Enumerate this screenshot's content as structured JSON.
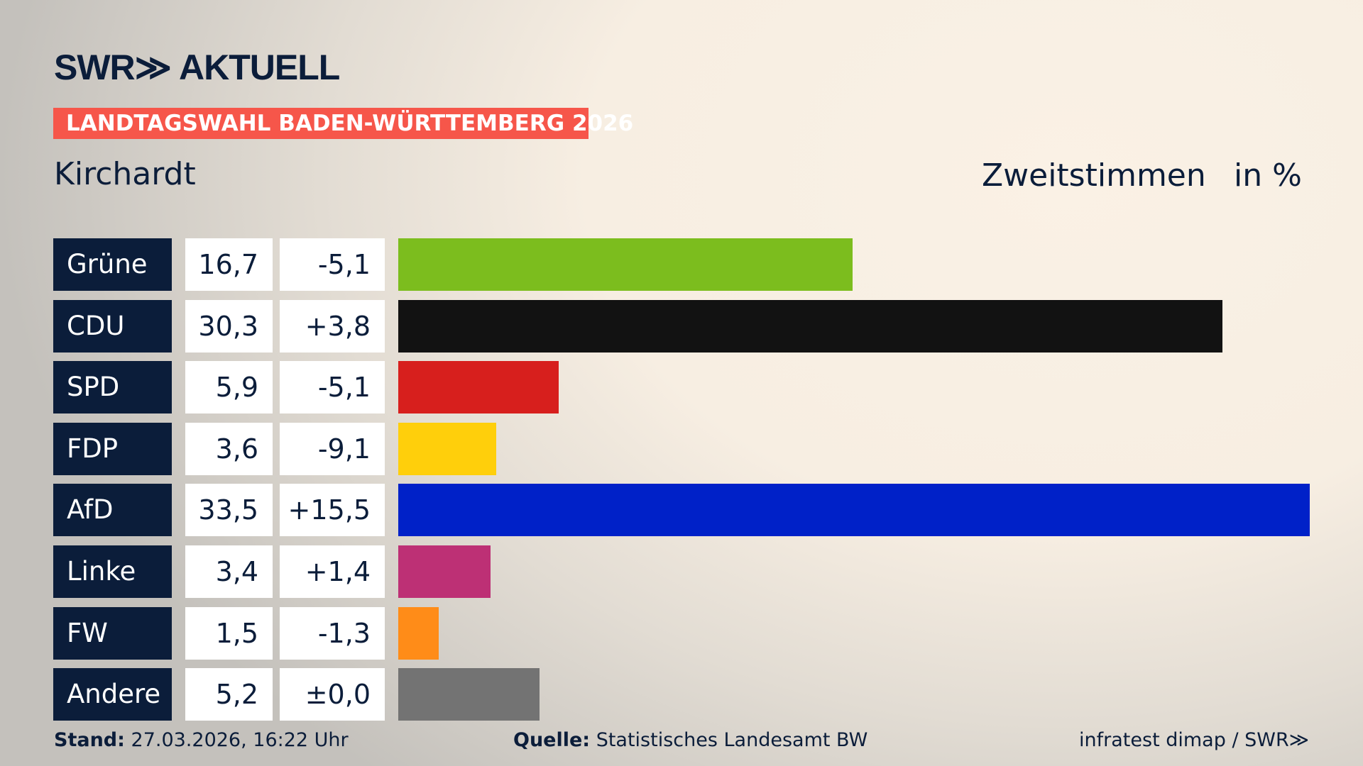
{
  "header": {
    "logo": "SWR≫ AKTUELL",
    "banner": "LANDTAGSWAHL BADEN-WÜRTTEMBERG 2026",
    "place": "Kirchardt",
    "measure": "Zweitstimmen",
    "unit": "in %"
  },
  "chart_data": {
    "type": "bar",
    "orientation": "horizontal",
    "categories": [
      "Grüne",
      "CDU",
      "SPD",
      "FDP",
      "AfD",
      "Linke",
      "FW",
      "Andere"
    ],
    "values": [
      16.7,
      30.3,
      5.9,
      3.6,
      33.5,
      3.4,
      1.5,
      5.2
    ],
    "value_labels": [
      "16,7",
      "30,3",
      "5,9",
      "3,6",
      "33,5",
      "3,4",
      "1,5",
      "5,2"
    ],
    "diff_labels": [
      "-5,1",
      "+3,8",
      "-5,1",
      "-9,1",
      "+15,5",
      "+1,4",
      "-1,3",
      "±0,0"
    ],
    "colors": [
      "#7cbd1e",
      "#121212",
      "#d71f1d",
      "#ffcf0b",
      "#0021c8",
      "#bd3075",
      "#ff8c18",
      "#737373"
    ],
    "grid": false,
    "legend": "none"
  },
  "footer": {
    "stand_label": "Stand:",
    "stand_value": "27.03.2026, 16:22 Uhr",
    "source_label": "Quelle:",
    "source_value": "Statistisches Landesamt BW",
    "credit": "infratest dimap / SWR≫"
  }
}
